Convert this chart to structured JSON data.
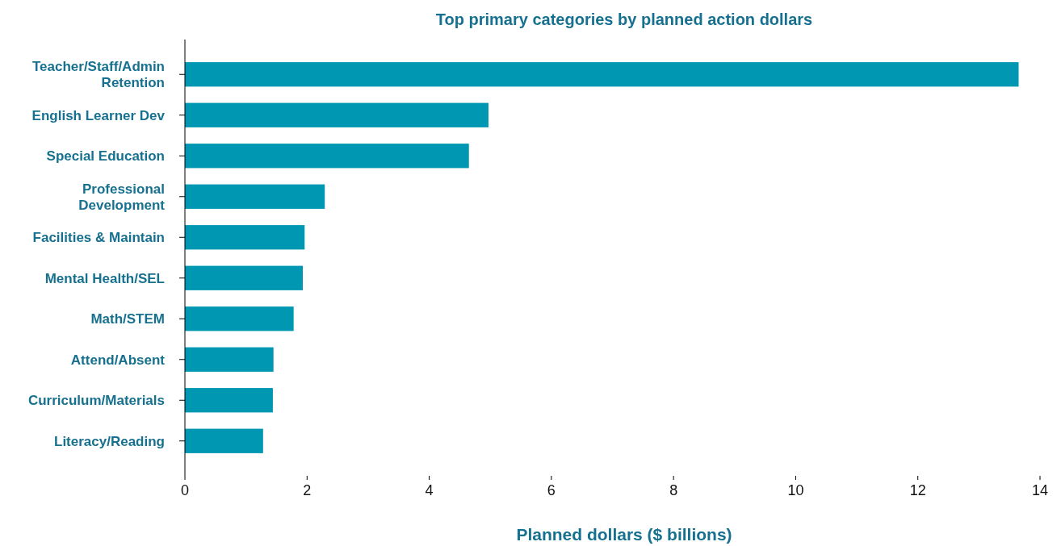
{
  "chart_data": {
    "type": "bar",
    "orientation": "horizontal",
    "title": "Top primary categories by planned action dollars",
    "xlabel": "Planned dollars ($ billions)",
    "categories": [
      "Teacher/Staff/Admin Retention",
      "English Learner Dev",
      "Special Education",
      "Professional Development",
      "Facilities & Maintain",
      "Mental Health/SEL",
      "Math/STEM",
      "Attend/Absent",
      "Curriculum/Materials",
      "Literacy/Reading"
    ],
    "values": [
      13.65,
      4.97,
      4.65,
      2.29,
      1.96,
      1.93,
      1.78,
      1.45,
      1.44,
      1.28
    ],
    "color": "#0097b2",
    "xlim": [
      0,
      14
    ],
    "xticks": [
      0,
      2,
      4,
      6,
      8,
      10,
      12,
      14
    ],
    "grid": false
  }
}
